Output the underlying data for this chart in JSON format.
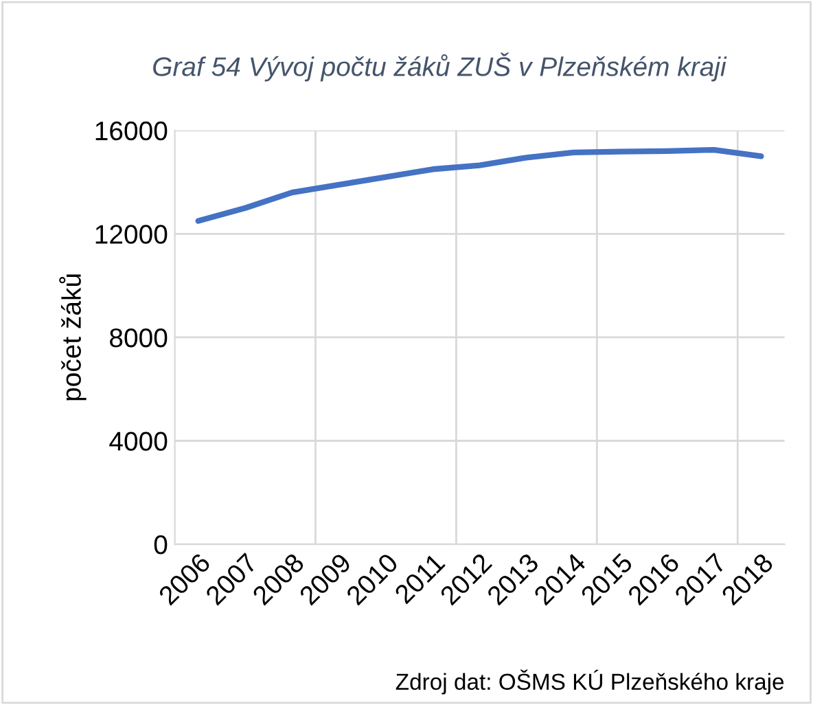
{
  "chart_data": {
    "type": "line",
    "title": "Graf 54 Vývoj počtu žáků ZUŠ v Plzeňském kraji",
    "ylabel": "počet žáků",
    "categories": [
      "2006",
      "2007",
      "2008",
      "2009",
      "2010",
      "2011",
      "2012",
      "2013",
      "2014",
      "2015",
      "2016",
      "2017",
      "2018"
    ],
    "series": [
      {
        "color": "#4472c4",
        "values": [
          12500,
          13000,
          13600,
          13900,
          14200,
          14500,
          14650,
          14950,
          15150,
          15180,
          15200,
          15250,
          15000
        ]
      }
    ],
    "ylim": [
      0,
      16000
    ],
    "yticks": [
      0,
      4000,
      8000,
      12000,
      16000
    ],
    "grid": true,
    "legend": false,
    "marker": "none",
    "line_style": "solid",
    "annotations": [
      "Zdroj dat: OŠMS KÚ Plzeňského kraje"
    ]
  }
}
